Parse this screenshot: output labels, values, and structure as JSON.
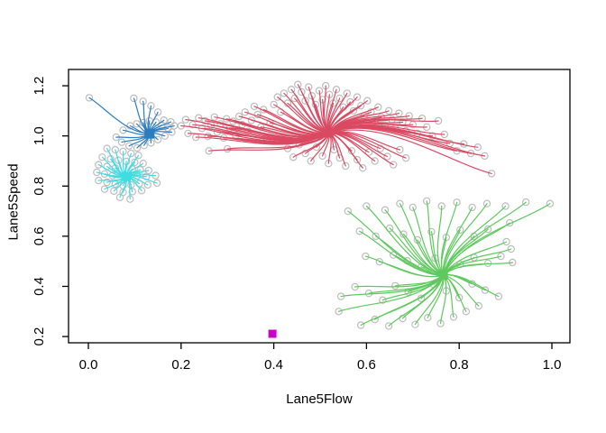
{
  "figure": {
    "background": "#ffffff",
    "axis_color": "#000000"
  },
  "chart_data": {
    "type": "scatter",
    "title": "",
    "xlabel": "Lane5Flow",
    "ylabel": "Lane5Speed",
    "xlim": [
      -0.0428,
      1.0389
    ],
    "ylim": [
      0.175,
      1.265
    ],
    "x_ticks": [
      0.0,
      0.2,
      0.4,
      0.6,
      0.8,
      1.0
    ],
    "y_ticks": [
      0.2,
      0.4,
      0.6,
      0.8,
      1.0,
      1.2
    ],
    "grid": false,
    "legend": "none",
    "point_marker": "open-circle",
    "point_color": "#bdbdbd",
    "centroid_marker": "filled-square",
    "edge_style": "curved",
    "clusters": [
      {
        "name": "cluster-blue",
        "color": "#2b7dbf",
        "centroid": [
          0.132,
          1.009
        ],
        "marker_size": 11,
        "points": [
          [
            0.002,
            1.152
          ],
          [
            0.098,
            1.15
          ],
          [
            0.118,
            1.138
          ],
          [
            0.135,
            1.12
          ],
          [
            0.15,
            1.095
          ],
          [
            0.163,
            1.063
          ],
          [
            0.178,
            1.056
          ],
          [
            0.185,
            1.04
          ],
          [
            0.172,
            1.03
          ],
          [
            0.158,
            1.043
          ],
          [
            0.146,
            1.055
          ],
          [
            0.132,
            1.06
          ],
          [
            0.118,
            1.053
          ],
          [
            0.104,
            1.048
          ],
          [
            0.09,
            1.04
          ],
          [
            0.075,
            1.023
          ],
          [
            0.06,
            0.995
          ],
          [
            0.072,
            0.975
          ],
          [
            0.088,
            0.96
          ],
          [
            0.105,
            0.952
          ],
          [
            0.12,
            0.962
          ],
          [
            0.135,
            0.972
          ],
          [
            0.15,
            0.985
          ],
          [
            0.165,
            1.0
          ],
          [
            0.18,
            1.015
          ]
        ]
      },
      {
        "name": "cluster-cyan",
        "color": "#3edde2",
        "centroid": [
          0.082,
          0.838
        ],
        "marker_size": 10,
        "points": [
          [
            0.04,
            0.95
          ],
          [
            0.058,
            0.945
          ],
          [
            0.075,
            0.938
          ],
          [
            0.092,
            0.93
          ],
          [
            0.108,
            0.922
          ],
          [
            0.03,
            0.915
          ],
          [
            0.048,
            0.908
          ],
          [
            0.065,
            0.903
          ],
          [
            0.082,
            0.898
          ],
          [
            0.1,
            0.895
          ],
          [
            0.118,
            0.89
          ],
          [
            0.022,
            0.885
          ],
          [
            0.04,
            0.878
          ],
          [
            0.058,
            0.872
          ],
          [
            0.095,
            0.868
          ],
          [
            0.112,
            0.865
          ],
          [
            0.13,
            0.862
          ],
          [
            0.018,
            0.855
          ],
          [
            0.035,
            0.848
          ],
          [
            0.052,
            0.842
          ],
          [
            0.105,
            0.84
          ],
          [
            0.125,
            0.838
          ],
          [
            0.145,
            0.842
          ],
          [
            0.022,
            0.822
          ],
          [
            0.04,
            0.815
          ],
          [
            0.058,
            0.808
          ],
          [
            0.075,
            0.802
          ],
          [
            0.092,
            0.805
          ],
          [
            0.11,
            0.81
          ],
          [
            0.128,
            0.805
          ],
          [
            0.148,
            0.812
          ],
          [
            0.035,
            0.788
          ],
          [
            0.055,
            0.78
          ],
          [
            0.075,
            0.775
          ],
          [
            0.095,
            0.778
          ],
          [
            0.115,
            0.782
          ],
          [
            0.068,
            0.755
          ],
          [
            0.09,
            0.748
          ]
        ]
      },
      {
        "name": "cluster-red",
        "color": "#d94a62",
        "centroid": [
          0.519,
          1.012
        ],
        "marker_size": 10,
        "points": [
          [
            0.2,
            1.04
          ],
          [
            0.21,
            1.065
          ],
          [
            0.215,
            1.01
          ],
          [
            0.225,
            1.045
          ],
          [
            0.232,
            0.995
          ],
          [
            0.238,
            1.072
          ],
          [
            0.245,
            1.03
          ],
          [
            0.252,
            1.06
          ],
          [
            0.258,
            0.998
          ],
          [
            0.26,
            0.94
          ],
          [
            0.265,
            1.042
          ],
          [
            0.272,
            1.075
          ],
          [
            0.278,
            1.015
          ],
          [
            0.285,
            1.048
          ],
          [
            0.292,
            0.992
          ],
          [
            0.298,
            1.068
          ],
          [
            0.3,
            0.948
          ],
          [
            0.305,
            1.032
          ],
          [
            0.312,
            1.058
          ],
          [
            0.318,
            1.002
          ],
          [
            0.325,
            1.078
          ],
          [
            0.332,
            1.045
          ],
          [
            0.338,
            1.095
          ],
          [
            0.345,
            1.018
          ],
          [
            0.352,
            1.062
          ],
          [
            0.358,
            1.118
          ],
          [
            0.365,
            1.085
          ],
          [
            0.372,
            1.035
          ],
          [
            0.378,
            1.105
          ],
          [
            0.385,
            0.988
          ],
          [
            0.392,
            1.052
          ],
          [
            0.4,
            1.125
          ],
          [
            0.408,
            1.155
          ],
          [
            0.415,
            1.095
          ],
          [
            0.422,
            1.17
          ],
          [
            0.43,
            1.13
          ],
          [
            0.438,
            1.185
          ],
          [
            0.445,
            1.15
          ],
          [
            0.452,
            1.205
          ],
          [
            0.46,
            1.175
          ],
          [
            0.468,
            1.14
          ],
          [
            0.475,
            1.195
          ],
          [
            0.482,
            1.16
          ],
          [
            0.49,
            1.125
          ],
          [
            0.498,
            1.18
          ],
          [
            0.505,
            1.145
          ],
          [
            0.512,
            1.2
          ],
          [
            0.52,
            1.165
          ],
          [
            0.528,
            1.13
          ],
          [
            0.535,
            1.185
          ],
          [
            0.542,
            1.15
          ],
          [
            0.55,
            1.115
          ],
          [
            0.558,
            1.17
          ],
          [
            0.565,
            1.135
          ],
          [
            0.572,
            1.1
          ],
          [
            0.58,
            1.155
          ],
          [
            0.588,
            1.12
          ],
          [
            0.595,
            1.08
          ],
          [
            0.602,
            1.14
          ],
          [
            0.61,
            1.095
          ],
          [
            0.618,
            1.06
          ],
          [
            0.625,
            1.115
          ],
          [
            0.632,
            1.075
          ],
          [
            0.64,
            1.04
          ],
          [
            0.648,
            1.1
          ],
          [
            0.655,
            1.065
          ],
          [
            0.662,
            1.03
          ],
          [
            0.67,
            1.09
          ],
          [
            0.678,
            1.055
          ],
          [
            0.685,
            1.02
          ],
          [
            0.692,
            1.08
          ],
          [
            0.7,
            1.045
          ],
          [
            0.71,
            1.01
          ],
          [
            0.72,
            1.07
          ],
          [
            0.73,
            1.035
          ],
          [
            0.742,
            1.0
          ],
          [
            0.755,
            1.06
          ],
          [
            0.768,
            1.006
          ],
          [
            0.78,
            0.97
          ],
          [
            0.795,
            0.94
          ],
          [
            0.81,
            0.968
          ],
          [
            0.825,
            0.93
          ],
          [
            0.84,
            0.955
          ],
          [
            0.855,
            0.92
          ],
          [
            0.87,
            0.85
          ],
          [
            0.42,
            0.98
          ],
          [
            0.43,
            0.95
          ],
          [
            0.442,
            0.915
          ],
          [
            0.455,
            0.965
          ],
          [
            0.468,
            0.93
          ],
          [
            0.48,
            0.9
          ],
          [
            0.492,
            0.955
          ],
          [
            0.505,
            0.92
          ],
          [
            0.518,
            0.89
          ],
          [
            0.53,
            0.945
          ],
          [
            0.542,
            0.912
          ],
          [
            0.555,
            0.88
          ],
          [
            0.568,
            0.94
          ],
          [
            0.58,
            0.905
          ],
          [
            0.592,
            0.872
          ],
          [
            0.605,
            0.935
          ],
          [
            0.618,
            0.9
          ],
          [
            0.63,
            0.95
          ],
          [
            0.645,
            0.918
          ],
          [
            0.658,
            0.885
          ],
          [
            0.672,
            0.945
          ],
          [
            0.685,
            0.912
          ]
        ]
      },
      {
        "name": "cluster-green",
        "color": "#5ec95e",
        "centroid": [
          0.766,
          0.445
        ],
        "marker_size": 10,
        "points": [
          [
            0.56,
            0.7
          ],
          [
            0.6,
            0.72
          ],
          [
            0.64,
            0.705
          ],
          [
            0.672,
            0.73
          ],
          [
            0.7,
            0.715
          ],
          [
            0.73,
            0.74
          ],
          [
            0.762,
            0.72
          ],
          [
            0.795,
            0.735
          ],
          [
            0.828,
            0.715
          ],
          [
            0.86,
            0.73
          ],
          [
            0.9,
            0.72
          ],
          [
            0.944,
            0.736
          ],
          [
            0.996,
            0.73
          ],
          [
            0.585,
            0.62
          ],
          [
            0.62,
            0.6
          ],
          [
            0.65,
            0.632
          ],
          [
            0.68,
            0.608
          ],
          [
            0.71,
            0.585
          ],
          [
            0.74,
            0.618
          ],
          [
            0.772,
            0.595
          ],
          [
            0.802,
            0.625
          ],
          [
            0.832,
            0.6
          ],
          [
            0.862,
            0.628
          ],
          [
            0.902,
            0.578
          ],
          [
            0.912,
            0.549
          ],
          [
            0.909,
            0.653
          ],
          [
            0.598,
            0.52
          ],
          [
            0.628,
            0.498
          ],
          [
            0.658,
            0.525
          ],
          [
            0.688,
            0.502
          ],
          [
            0.718,
            0.478
          ],
          [
            0.748,
            0.512
          ],
          [
            0.802,
            0.488
          ],
          [
            0.832,
            0.515
          ],
          [
            0.862,
            0.492
          ],
          [
            0.89,
            0.52
          ],
          [
            0.915,
            0.495
          ],
          [
            0.545,
            0.36
          ],
          [
            0.54,
            0.3
          ],
          [
            0.575,
            0.398
          ],
          [
            0.605,
            0.372
          ],
          [
            0.635,
            0.345
          ],
          [
            0.662,
            0.402
          ],
          [
            0.69,
            0.378
          ],
          [
            0.718,
            0.352
          ],
          [
            0.745,
            0.408
          ],
          [
            0.772,
            0.382
          ],
          [
            0.8,
            0.355
          ],
          [
            0.828,
            0.41
          ],
          [
            0.856,
            0.385
          ],
          [
            0.885,
            0.36
          ],
          [
            0.588,
            0.245
          ],
          [
            0.618,
            0.268
          ],
          [
            0.648,
            0.242
          ],
          [
            0.678,
            0.272
          ],
          [
            0.705,
            0.248
          ],
          [
            0.732,
            0.275
          ],
          [
            0.76,
            0.252
          ],
          [
            0.788,
            0.278
          ],
          [
            0.815,
            0.3
          ],
          [
            0.842,
            0.322
          ]
        ]
      },
      {
        "name": "cluster-magenta",
        "color": "#cc00cc",
        "centroid": [
          0.397,
          0.211
        ],
        "marker_size": 9,
        "points": []
      }
    ]
  }
}
